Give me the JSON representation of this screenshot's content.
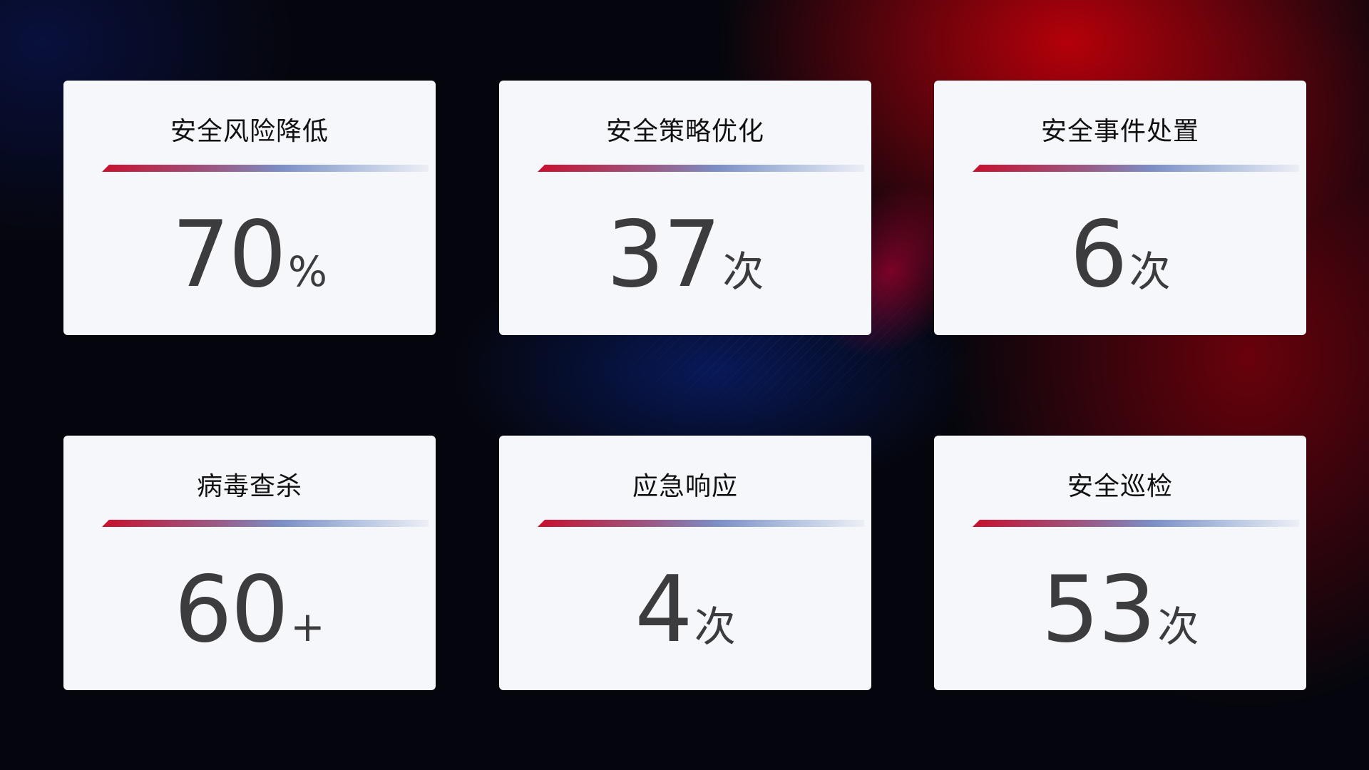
{
  "colors": {
    "accent_red": "#c8102e",
    "accent_blue": "#7b8fc6",
    "card_bg": "#f6f7fb",
    "value_text": "#3c3c3e"
  },
  "cards": [
    {
      "title": "安全风险降低",
      "value": "70",
      "unit": "%"
    },
    {
      "title": "安全策略优化",
      "value": "37",
      "unit": "次"
    },
    {
      "title": "安全事件处置",
      "value": "6",
      "unit": "次"
    },
    {
      "title": "病毒查杀",
      "value": "60",
      "unit": "+"
    },
    {
      "title": "应急响应",
      "value": "4",
      "unit": "次"
    },
    {
      "title": "安全巡检",
      "value": "53",
      "unit": "次"
    }
  ]
}
